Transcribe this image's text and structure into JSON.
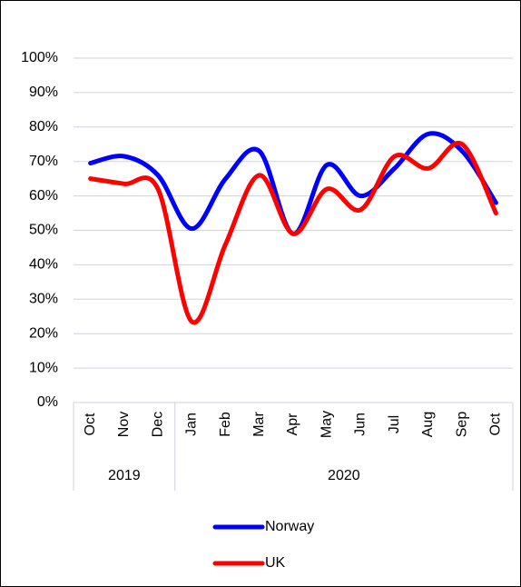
{
  "chart_data": {
    "type": "line",
    "categories": [
      "Oct",
      "Nov",
      "Dec",
      "Jan",
      "Feb",
      "Mar",
      "Apr",
      "May",
      "Jun",
      "Jul",
      "Aug",
      "Sep",
      "Oct"
    ],
    "groups": [
      "2019",
      null,
      null,
      "2020",
      null,
      null,
      null,
      null,
      null,
      null,
      null,
      null,
      null
    ],
    "series": [
      {
        "name": "Norway",
        "color": "#0000ff",
        "values": [
          69.5,
          71.5,
          66,
          50.5,
          65,
          73,
          49,
          69,
          60,
          68,
          78,
          73,
          58
        ]
      },
      {
        "name": "UK",
        "color": "#ff0000",
        "values": [
          65,
          63.5,
          62,
          23.5,
          46,
          66,
          49,
          62,
          56,
          71.5,
          68,
          75,
          55
        ]
      }
    ],
    "ylim": [
      0,
      100
    ],
    "yticks": [
      {
        "value": 0,
        "label": "0%"
      },
      {
        "value": 10,
        "label": "10%"
      },
      {
        "value": 20,
        "label": "20%"
      },
      {
        "value": 30,
        "label": "30%"
      },
      {
        "value": 40,
        "label": "40%"
      },
      {
        "value": 50,
        "label": "50%"
      },
      {
        "value": 60,
        "label": "60%"
      },
      {
        "value": 70,
        "label": "70%"
      },
      {
        "value": 80,
        "label": "80%"
      },
      {
        "value": 90,
        "label": "90%"
      },
      {
        "value": 100,
        "label": "100%"
      }
    ],
    "grid": true,
    "smooth": true,
    "legend": "bottom"
  }
}
